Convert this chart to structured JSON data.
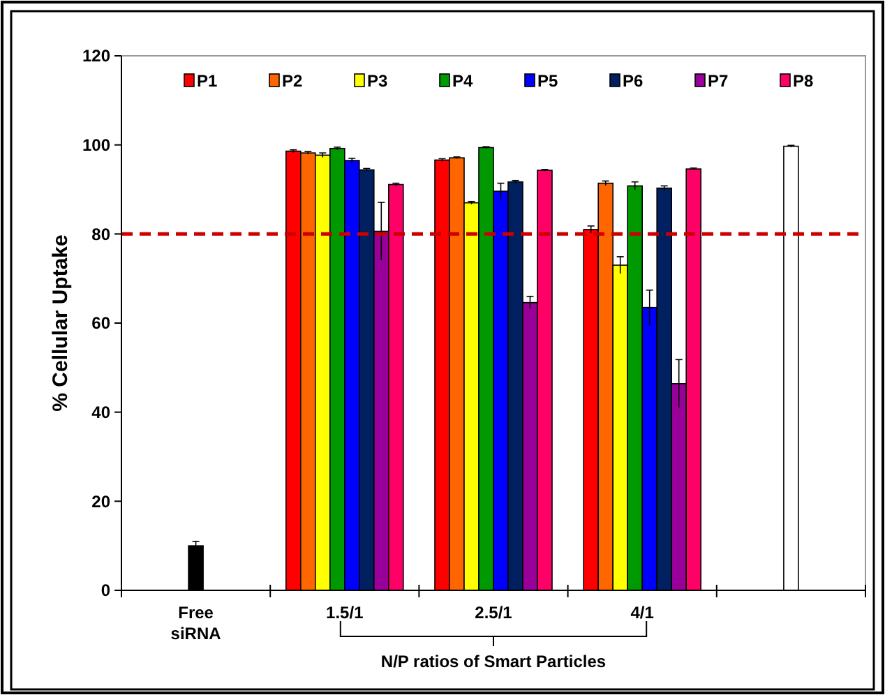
{
  "chart_data": {
    "type": "bar",
    "ylabel": "% Cellular Uptake",
    "categories": [
      "Free\nsiRNA",
      "1.5/1",
      "2.5/1",
      "4/1",
      null
    ],
    "ylim": [
      0,
      120
    ],
    "yticks": [
      0,
      20,
      40,
      60,
      80,
      100,
      120
    ],
    "grid": false,
    "legend": "top",
    "series": [
      {
        "name": "P1",
        "color": "#ff0000",
        "values": [
          null,
          98.6,
          96.6,
          81.0,
          null
        ],
        "errors": [
          null,
          0.3,
          0.3,
          0.8,
          null
        ]
      },
      {
        "name": "P2",
        "color": "#ff6600",
        "values": [
          null,
          98.2,
          97.1,
          91.4,
          null
        ],
        "errors": [
          null,
          0.3,
          0.2,
          0.5,
          null
        ]
      },
      {
        "name": "P3",
        "color": "#ffff00",
        "values": [
          null,
          97.7,
          87.0,
          73.0,
          null
        ],
        "errors": [
          null,
          0.5,
          0.3,
          1.9,
          null
        ]
      },
      {
        "name": "P4",
        "color": "#009900",
        "values": [
          null,
          99.2,
          99.4,
          90.8,
          null
        ],
        "errors": [
          null,
          0.3,
          0.2,
          0.9,
          null
        ]
      },
      {
        "name": "P5",
        "color": "#0000ff",
        "values": [
          null,
          96.5,
          89.6,
          63.5,
          null
        ],
        "errors": [
          null,
          0.5,
          1.8,
          3.9,
          null
        ]
      },
      {
        "name": "P6",
        "color": "#002060",
        "values": [
          null,
          94.4,
          91.7,
          90.3,
          null
        ],
        "errors": [
          null,
          0.3,
          0.3,
          0.5,
          null
        ]
      },
      {
        "name": "P7",
        "color": "#990099",
        "values": [
          null,
          80.6,
          64.6,
          46.4,
          null
        ],
        "errors": [
          null,
          6.5,
          1.4,
          5.4,
          null
        ]
      },
      {
        "name": "P8",
        "color": "#ff0066",
        "values": [
          null,
          91.1,
          94.3,
          94.6,
          null
        ],
        "errors": [
          null,
          0.3,
          0.2,
          0.2,
          null
        ]
      },
      {
        "colors": [
          "#000000",
          null,
          null,
          null,
          "#ffffff"
        ],
        "values": [
          10.0,
          null,
          null,
          null,
          99.7
        ],
        "errors": [
          1.0,
          null,
          null,
          null,
          0.2
        ]
      }
    ],
    "ref_lines": [
      {
        "axis": "y",
        "value": 80,
        "color": "#cc0000",
        "line_style": "dashed"
      }
    ],
    "annotations": [
      "N/P ratios of  Smart Particles"
    ]
  }
}
